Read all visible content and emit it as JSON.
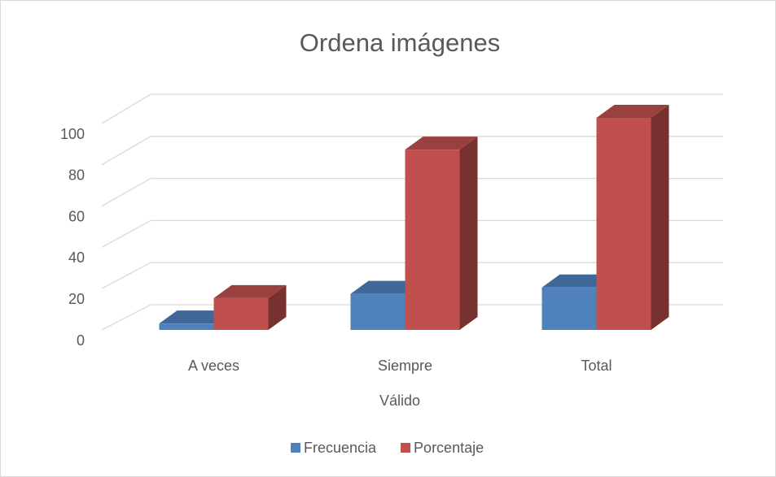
{
  "chart_data": {
    "type": "bar3d",
    "title": "Ordena imágenes",
    "x_label": "Válido",
    "categories": [
      "A veces",
      "Siempre",
      "Total"
    ],
    "series": [
      {
        "name": "Frecuencia",
        "color": "#4f81bd",
        "values": [
          3,
          17,
          20
        ]
      },
      {
        "name": "Porcentaje",
        "color": "#c0504d",
        "values": [
          15,
          85,
          100
        ]
      }
    ],
    "ylim": [
      0,
      100
    ],
    "yticks": [
      0,
      20,
      40,
      60,
      80,
      100
    ],
    "grid": true,
    "legend": "bottom"
  }
}
